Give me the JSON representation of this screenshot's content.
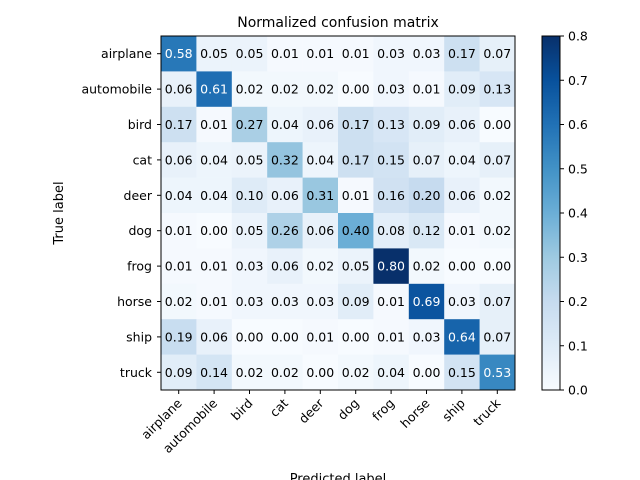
{
  "chart_data": {
    "type": "heatmap",
    "title": "Normalized confusion matrix",
    "xlabel": "Predicted label",
    "ylabel": "True label",
    "x_categories": [
      "airplane",
      "automobile",
      "bird",
      "cat",
      "deer",
      "dog",
      "frog",
      "horse",
      "ship",
      "truck"
    ],
    "y_categories": [
      "airplane",
      "automobile",
      "bird",
      "cat",
      "deer",
      "dog",
      "frog",
      "horse",
      "ship",
      "truck"
    ],
    "values": [
      [
        0.58,
        0.05,
        0.05,
        0.01,
        0.01,
        0.01,
        0.03,
        0.03,
        0.17,
        0.07
      ],
      [
        0.06,
        0.61,
        0.02,
        0.02,
        0.02,
        0.0,
        0.03,
        0.01,
        0.09,
        0.13
      ],
      [
        0.17,
        0.01,
        0.27,
        0.04,
        0.06,
        0.17,
        0.13,
        0.09,
        0.06,
        0.0
      ],
      [
        0.06,
        0.04,
        0.05,
        0.32,
        0.04,
        0.17,
        0.15,
        0.07,
        0.04,
        0.07
      ],
      [
        0.04,
        0.04,
        0.1,
        0.06,
        0.31,
        0.01,
        0.16,
        0.2,
        0.06,
        0.02
      ],
      [
        0.01,
        0.0,
        0.05,
        0.26,
        0.06,
        0.4,
        0.08,
        0.12,
        0.01,
        0.02
      ],
      [
        0.01,
        0.01,
        0.03,
        0.06,
        0.02,
        0.05,
        0.8,
        0.02,
        0.0,
        0.0
      ],
      [
        0.02,
        0.01,
        0.03,
        0.03,
        0.03,
        0.09,
        0.01,
        0.69,
        0.03,
        0.07
      ],
      [
        0.19,
        0.06,
        0.0,
        0.0,
        0.01,
        0.0,
        0.01,
        0.03,
        0.64,
        0.07
      ],
      [
        0.09,
        0.14,
        0.02,
        0.02,
        0.0,
        0.02,
        0.04,
        0.0,
        0.15,
        0.53
      ]
    ],
    "colormap": "Blues",
    "colorbar": {
      "min": 0.0,
      "max": 0.8,
      "ticks": [
        "0.0",
        "0.1",
        "0.2",
        "0.3",
        "0.4",
        "0.5",
        "0.6",
        "0.7",
        "0.8"
      ]
    },
    "text_color_light": "#ffffff",
    "text_color_dark": "#000000",
    "legend": "none",
    "grid": false
  }
}
